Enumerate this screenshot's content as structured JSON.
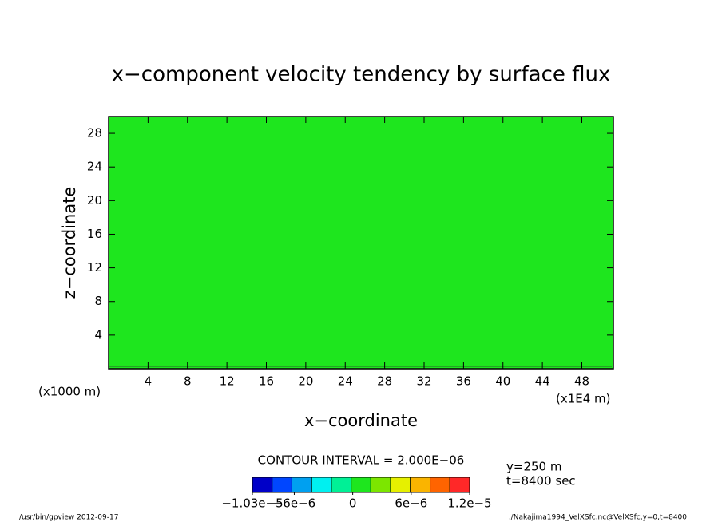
{
  "chart_data": {
    "type": "contour",
    "title": "x−component velocity tendency by surface flux",
    "x_label": "x−coordinate",
    "y_label": "z−coordinate",
    "x_unit": "(x1E4 m)",
    "y_unit": "(x1000 m)",
    "fill_color": "#1ee61e",
    "xlim": [
      0,
      51.2
    ],
    "xticks": [
      4,
      8,
      12,
      16,
      20,
      24,
      28,
      32,
      36,
      40,
      44,
      48
    ],
    "ylim": [
      0,
      30
    ],
    "yticks": [
      4,
      8,
      12,
      16,
      20,
      24,
      28
    ],
    "contour_interval": "CONTOUR INTERVAL = 2.000E−06",
    "info": [
      "y=250 m",
      "t=8400 sec"
    ],
    "colorbar": {
      "colors": [
        "#0000c8",
        "#0046ff",
        "#00a0f0",
        "#00f0f0",
        "#00f096",
        "#1ee61e",
        "#7ce600",
        "#e6f000",
        "#fab400",
        "#ff6400",
        "#ff2828"
      ],
      "lim": [
        -1.03e-05,
        1.2e-05
      ],
      "ticks": [
        {
          "value": -1.03e-05,
          "label": "−1.03e−5"
        },
        {
          "value": -6e-06,
          "label": "−6e−6"
        },
        0,
        {
          "value": 6e-06,
          "label": "6e−6"
        },
        {
          "value": 1.2e-05,
          "label": "1.2e−5"
        }
      ]
    },
    "footer_left": "/usr/bin/gpview  2012-09-17",
    "footer_right": "./Nakajima1994_VelXSfc.nc@VelXSfc,y=0,t=8400"
  }
}
